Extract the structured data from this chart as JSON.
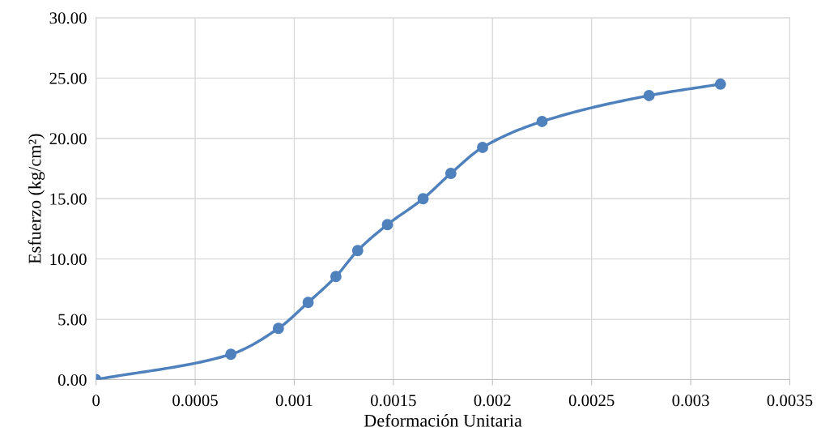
{
  "chart_data": {
    "type": "line",
    "xlabel": "Deformación Unitaria",
    "ylabel": "Esfuerzo (kg/cm²)",
    "x": [
      0,
      0.00068,
      0.00092,
      0.00107,
      0.00121,
      0.00132,
      0.00147,
      0.00165,
      0.00179,
      0.00195,
      0.00225,
      0.00279,
      0.00315
    ],
    "series": [
      {
        "color": "#4f81bd",
        "values": [
          0,
          2.1,
          4.25,
          6.4,
          8.55,
          10.7,
          12.85,
          15.0,
          17.1,
          19.25,
          21.4,
          23.55,
          24.5
        ]
      }
    ],
    "xlim": [
      0,
      0.0035
    ],
    "xticks": [
      0,
      0.0005,
      0.001,
      0.0015,
      0.002,
      0.0025,
      0.003,
      0.0035
    ],
    "ylim": [
      0,
      30
    ],
    "yticks": [
      {
        "value": 0,
        "label": "0.00"
      },
      {
        "value": 5,
        "label": "5.00"
      },
      {
        "value": 10,
        "label": "10.00"
      },
      {
        "value": 15,
        "label": "15.00"
      },
      {
        "value": 20,
        "label": "20.00"
      },
      {
        "value": 25,
        "label": "25.00"
      },
      {
        "value": 30,
        "label": "30.00"
      }
    ],
    "grid": true,
    "marker": "circle",
    "line_style": "solid"
  }
}
